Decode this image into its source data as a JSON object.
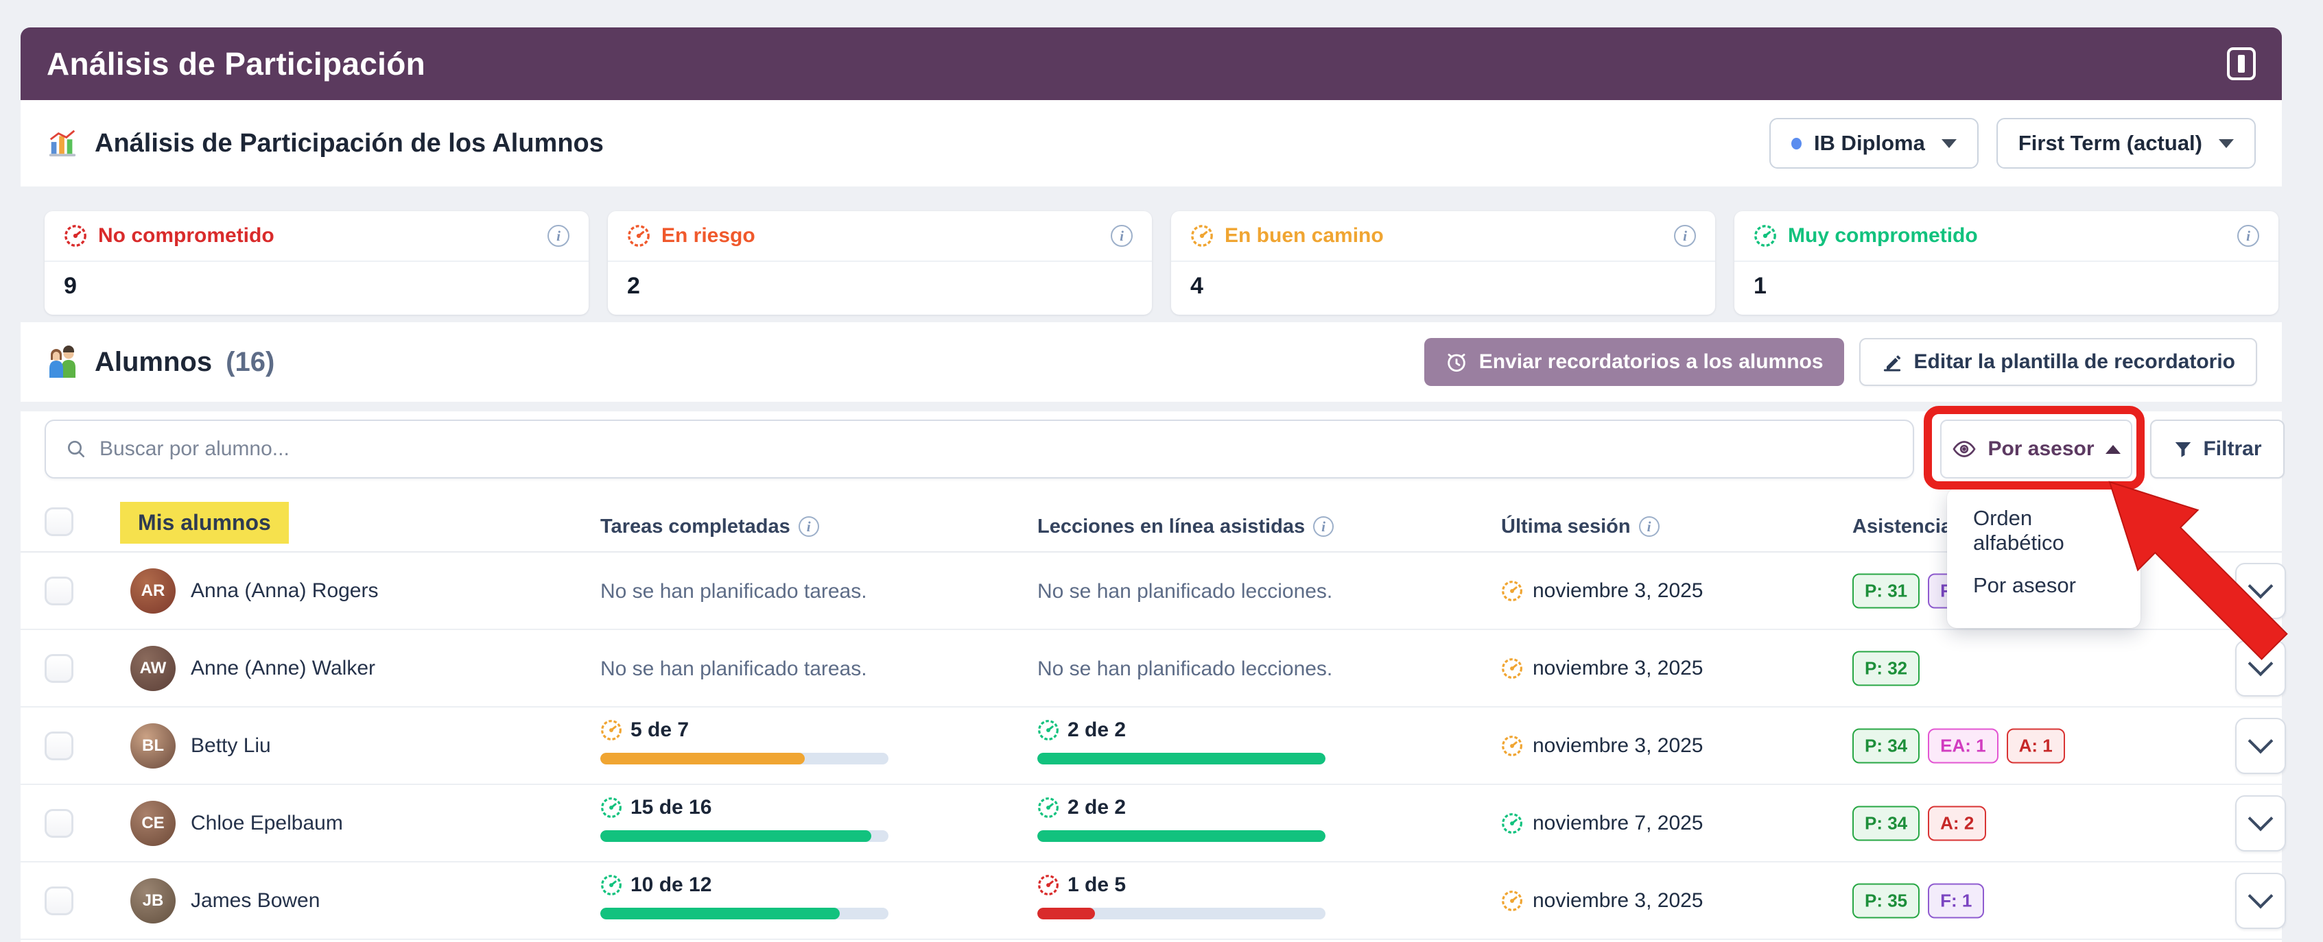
{
  "page": {
    "title": "Análisis de Participación"
  },
  "toolbar": {
    "heading": "Análisis de Participación de los Alumnos",
    "program_selector": "IB Diploma",
    "term_selector": "First Term (actual)"
  },
  "summary_cards": [
    {
      "label": "No comprometido",
      "value": "9",
      "color": "#d92b2b"
    },
    {
      "label": "En riesgo",
      "value": "2",
      "color": "#f0592c"
    },
    {
      "label": "En buen camino",
      "value": "4",
      "color": "#f0a532"
    },
    {
      "label": "Muy comprometido",
      "value": "1",
      "color": "#12c27e"
    }
  ],
  "students": {
    "section_title": "Alumnos",
    "count": "(16)",
    "send_reminders": "Enviar recordatorios a los alumnos",
    "edit_template": "Editar la plantilla de recordatorio",
    "search_placeholder": "Buscar por alumno...",
    "sort_button": "Por asesor",
    "filter_button": "Filtrar",
    "sort_menu": [
      "Orden alfabético",
      "Por asesor"
    ]
  },
  "table": {
    "col_students": "Mis alumnos",
    "col_tasks": "Tareas completadas",
    "col_lessons": "Lecciones en línea asistidas",
    "col_last_session": "Última sesión",
    "col_attendance": "Asistencia",
    "rows": [
      {
        "name": "Anna (Anna) Rogers",
        "initials": "AR",
        "tasks": {
          "type": "none",
          "text": "No se han planificado tareas."
        },
        "lessons": {
          "type": "none",
          "text": "No se han planificado lecciones."
        },
        "last_session": {
          "date": "noviembre 3, 2025",
          "status": "warn"
        },
        "badges": [
          {
            "label": "P: 31",
            "type": "present"
          },
          {
            "label": "F:",
            "type": "late"
          }
        ]
      },
      {
        "name": "Anne (Anne) Walker",
        "initials": "AW",
        "tasks": {
          "type": "none",
          "text": "No se han planificado tareas."
        },
        "lessons": {
          "type": "none",
          "text": "No se han planificado lecciones."
        },
        "last_session": {
          "date": "noviembre 3, 2025",
          "status": "warn"
        },
        "badges": [
          {
            "label": "P: 32",
            "type": "present"
          }
        ]
      },
      {
        "name": "Betty Liu",
        "initials": "BL",
        "tasks": {
          "type": "progress",
          "text": "5 de 7",
          "value": 5,
          "total": 7,
          "status": "warn"
        },
        "lessons": {
          "type": "progress",
          "text": "2 de 2",
          "value": 2,
          "total": 2,
          "status": "good"
        },
        "last_session": {
          "date": "noviembre 3, 2025",
          "status": "warn"
        },
        "badges": [
          {
            "label": "P: 34",
            "type": "present"
          },
          {
            "label": "EA: 1",
            "type": "ea"
          },
          {
            "label": "A: 1",
            "type": "absent"
          }
        ]
      },
      {
        "name": "Chloe Epelbaum",
        "initials": "CE",
        "tasks": {
          "type": "progress",
          "text": "15 de 16",
          "value": 15,
          "total": 16,
          "status": "good"
        },
        "lessons": {
          "type": "progress",
          "text": "2 de 2",
          "value": 2,
          "total": 2,
          "status": "good"
        },
        "last_session": {
          "date": "noviembre 7, 2025",
          "status": "good"
        },
        "badges": [
          {
            "label": "P: 34",
            "type": "present"
          },
          {
            "label": "A: 2",
            "type": "absent"
          }
        ]
      },
      {
        "name": "James Bowen",
        "initials": "JB",
        "tasks": {
          "type": "progress",
          "text": "10 de 12",
          "value": 10,
          "total": 12,
          "status": "good"
        },
        "lessons": {
          "type": "progress",
          "text": "1 de 5",
          "value": 1,
          "total": 5,
          "status": "bad"
        },
        "last_session": {
          "date": "noviembre 3, 2025",
          "status": "warn"
        },
        "badges": [
          {
            "label": "P: 35",
            "type": "present"
          },
          {
            "label": "F: 1",
            "type": "late"
          }
        ]
      }
    ]
  },
  "status_colors": {
    "warn": "#f0a532",
    "good": "#12c27e",
    "bad": "#d92b2b"
  },
  "annotation": {
    "color": "#e8211d",
    "highlight": "#f6e14d"
  }
}
